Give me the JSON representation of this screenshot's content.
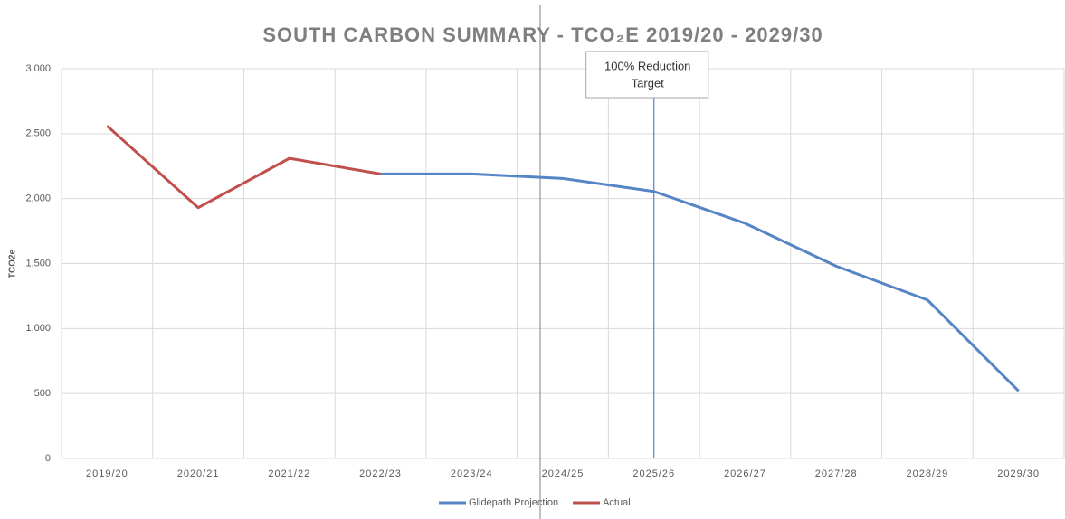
{
  "chart_data": {
    "type": "line",
    "title": "SOUTH CARBON SUMMARY - TCO₂E 2019/20 - 2029/30",
    "y_label": "TCO2e",
    "categories": [
      "2019/20",
      "2020/21",
      "2021/22",
      "2022/23",
      "2023/24",
      "2024/25",
      "2025/26",
      "2026/27",
      "2027/28",
      "2028/29",
      "2029/30"
    ],
    "series": [
      {
        "name": "Glidepath Projection",
        "color": "#5585c5",
        "values": [
          null,
          null,
          null,
          2190,
          2190,
          2155,
          2055,
          1810,
          1480,
          1220,
          520
        ]
      },
      {
        "name": "Actual",
        "color": "#c0504d",
        "values": [
          2560,
          1930,
          2310,
          2190,
          null,
          null,
          null,
          null,
          null,
          null,
          null
        ]
      }
    ],
    "ylim": [
      0,
      3000
    ],
    "yticks": [
      0,
      500,
      {
        "value": 1000,
        "label": "1,000"
      },
      {
        "value": 1500,
        "label": "1,500"
      },
      {
        "value": 2000,
        "label": "2,000"
      },
      {
        "value": 2500,
        "label": "2,500"
      },
      {
        "value": 3000,
        "label": "3,000"
      }
    ],
    "grid": true,
    "legend": "bottom",
    "annotation": {
      "text": [
        "100% Reduction",
        "Target"
      ],
      "x": "2025/26"
    }
  }
}
